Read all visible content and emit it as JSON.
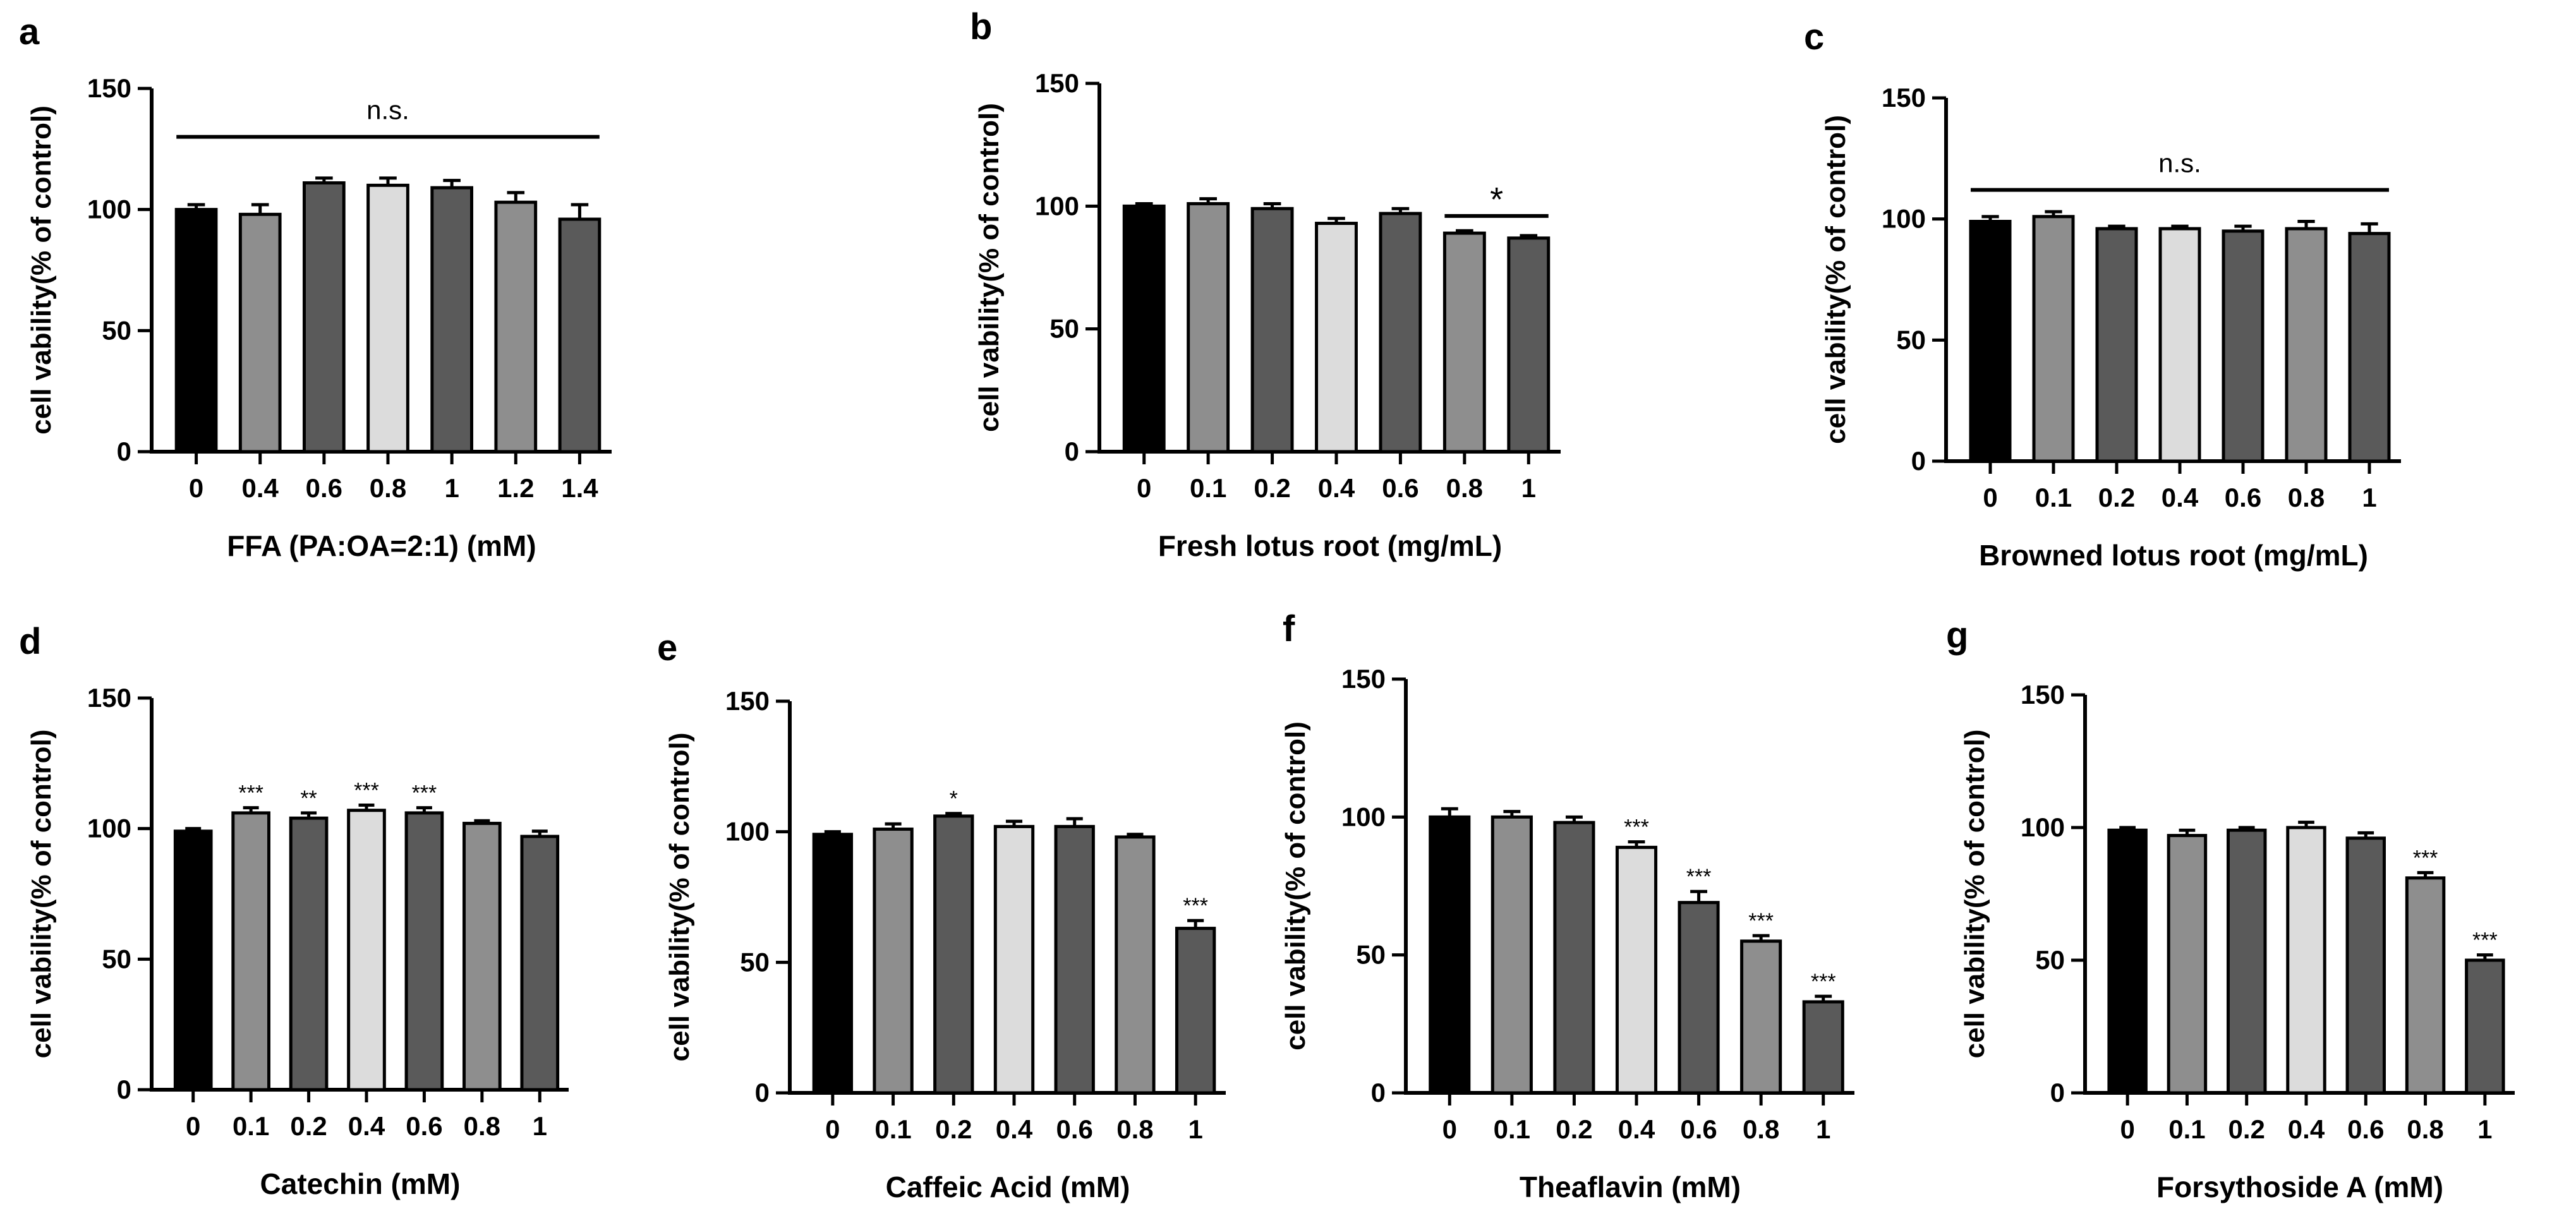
{
  "figure": {
    "colors": {
      "black": "#000000",
      "gray": "#8e8e8e",
      "light": "#dcdcdc",
      "dark": "#5a5a5a"
    }
  },
  "chart_data": [
    {
      "letter": "a",
      "type": "bar",
      "ylabel": "cell vability(% of control)",
      "xlabel": "FFA (PA:OA=2:1) (mM)",
      "categories": [
        "0",
        "0.4",
        "0.6",
        "0.8",
        "1",
        "1.2",
        "1.4"
      ],
      "values": [
        100,
        98,
        111,
        110,
        109,
        103,
        96
      ],
      "errors": [
        2,
        4,
        2,
        3,
        3,
        4,
        6
      ],
      "colors": [
        "black",
        "gray",
        "dark",
        "light",
        "dark",
        "gray",
        "dark"
      ],
      "significance": [
        "",
        "",
        "",
        "",
        "",
        "",
        ""
      ],
      "ylim": [
        0,
        150
      ],
      "yticks": [
        0,
        50,
        100,
        150
      ],
      "bracket": {
        "from": 0,
        "to": 6,
        "label": "n.s.",
        "value": 130
      }
    },
    {
      "letter": "b",
      "type": "bar",
      "ylabel": "cell vability(% of control)",
      "xlabel": "Fresh lotus root (mg/mL)",
      "categories": [
        "0",
        "0.1",
        "0.2",
        "0.4",
        "0.6",
        "0.8",
        "1"
      ],
      "values": [
        100,
        101,
        99,
        93,
        97,
        89,
        87
      ],
      "errors": [
        1,
        2,
        2,
        2,
        2,
        1,
        1
      ],
      "colors": [
        "black",
        "gray",
        "dark",
        "light",
        "dark",
        "gray",
        "dark"
      ],
      "significance": [
        "",
        "",
        "",
        "",
        "",
        "",
        ""
      ],
      "ylim": [
        0,
        150
      ],
      "yticks": [
        0,
        50,
        100,
        150
      ],
      "bracket": {
        "from": 5,
        "to": 6,
        "label": "*",
        "value": 96
      }
    },
    {
      "letter": "c",
      "type": "bar",
      "ylabel": "cell vability(% of control)",
      "xlabel": "Browned lotus root (mg/mL)",
      "categories": [
        "0",
        "0.1",
        "0.2",
        "0.4",
        "0.6",
        "0.8",
        "1"
      ],
      "values": [
        99,
        101,
        96,
        96,
        95,
        96,
        94
      ],
      "errors": [
        2,
        2,
        1,
        1,
        2,
        3,
        4
      ],
      "colors": [
        "black",
        "gray",
        "dark",
        "light",
        "dark",
        "gray",
        "dark"
      ],
      "significance": [
        "",
        "",
        "",
        "",
        "",
        "",
        ""
      ],
      "ylim": [
        0,
        150
      ],
      "yticks": [
        0,
        50,
        100,
        150
      ],
      "bracket": {
        "from": 0,
        "to": 6,
        "label": "n.s.",
        "value": 112
      }
    },
    {
      "letter": "d",
      "type": "bar",
      "ylabel": "cell vability(% of control)",
      "xlabel": "Catechin (mM)",
      "categories": [
        "0",
        "0.1",
        "0.2",
        "0.4",
        "0.6",
        "0.8",
        "1"
      ],
      "values": [
        99,
        106,
        104,
        107,
        106,
        102,
        97
      ],
      "errors": [
        1,
        2,
        2,
        2,
        2,
        1,
        2
      ],
      "colors": [
        "black",
        "gray",
        "dark",
        "light",
        "dark",
        "gray",
        "dark"
      ],
      "significance": [
        "",
        "***",
        "**",
        "***",
        "***",
        "",
        ""
      ],
      "ylim": [
        0,
        150
      ],
      "yticks": [
        0,
        50,
        100,
        150
      ]
    },
    {
      "letter": "e",
      "type": "bar",
      "ylabel": "cell vability(% of control)",
      "xlabel": "Caffeic Acid (mM)",
      "categories": [
        "0",
        "0.1",
        "0.2",
        "0.4",
        "0.6",
        "0.8",
        "1"
      ],
      "values": [
        99,
        101,
        106,
        102,
        102,
        98,
        63
      ],
      "errors": [
        1,
        2,
        1,
        2,
        3,
        1,
        3
      ],
      "colors": [
        "black",
        "gray",
        "dark",
        "light",
        "dark",
        "gray",
        "dark"
      ],
      "significance": [
        "",
        "",
        "*",
        "",
        "",
        "",
        "***"
      ],
      "ylim": [
        0,
        150
      ],
      "yticks": [
        0,
        50,
        100,
        150
      ]
    },
    {
      "letter": "f",
      "type": "bar",
      "ylabel": "cell vability(% of control)",
      "xlabel": "Theaflavin (mM)",
      "categories": [
        "0",
        "0.1",
        "0.2",
        "0.4",
        "0.6",
        "0.8",
        "1"
      ],
      "values": [
        100,
        100,
        98,
        89,
        69,
        55,
        33
      ],
      "errors": [
        3,
        2,
        2,
        2,
        4,
        2,
        2
      ],
      "colors": [
        "black",
        "gray",
        "dark",
        "light",
        "dark",
        "gray",
        "dark"
      ],
      "significance": [
        "",
        "",
        "",
        "***",
        "***",
        "***",
        "***"
      ],
      "ylim": [
        0,
        150
      ],
      "yticks": [
        0,
        50,
        100,
        150
      ]
    },
    {
      "letter": "g",
      "type": "bar",
      "ylabel": "cell vability(% of control)",
      "xlabel": "Forsythoside A (mM)",
      "categories": [
        "0",
        "0.1",
        "0.2",
        "0.4",
        "0.6",
        "0.8",
        "1"
      ],
      "values": [
        99,
        97,
        99,
        100,
        96,
        81,
        50
      ],
      "errors": [
        1,
        2,
        1,
        2,
        2,
        2,
        2
      ],
      "colors": [
        "black",
        "gray",
        "dark",
        "light",
        "dark",
        "gray",
        "dark"
      ],
      "significance": [
        "",
        "",
        "",
        "",
        "",
        "***",
        "***"
      ],
      "ylim": [
        0,
        150
      ],
      "yticks": [
        0,
        50,
        100,
        150
      ]
    }
  ]
}
